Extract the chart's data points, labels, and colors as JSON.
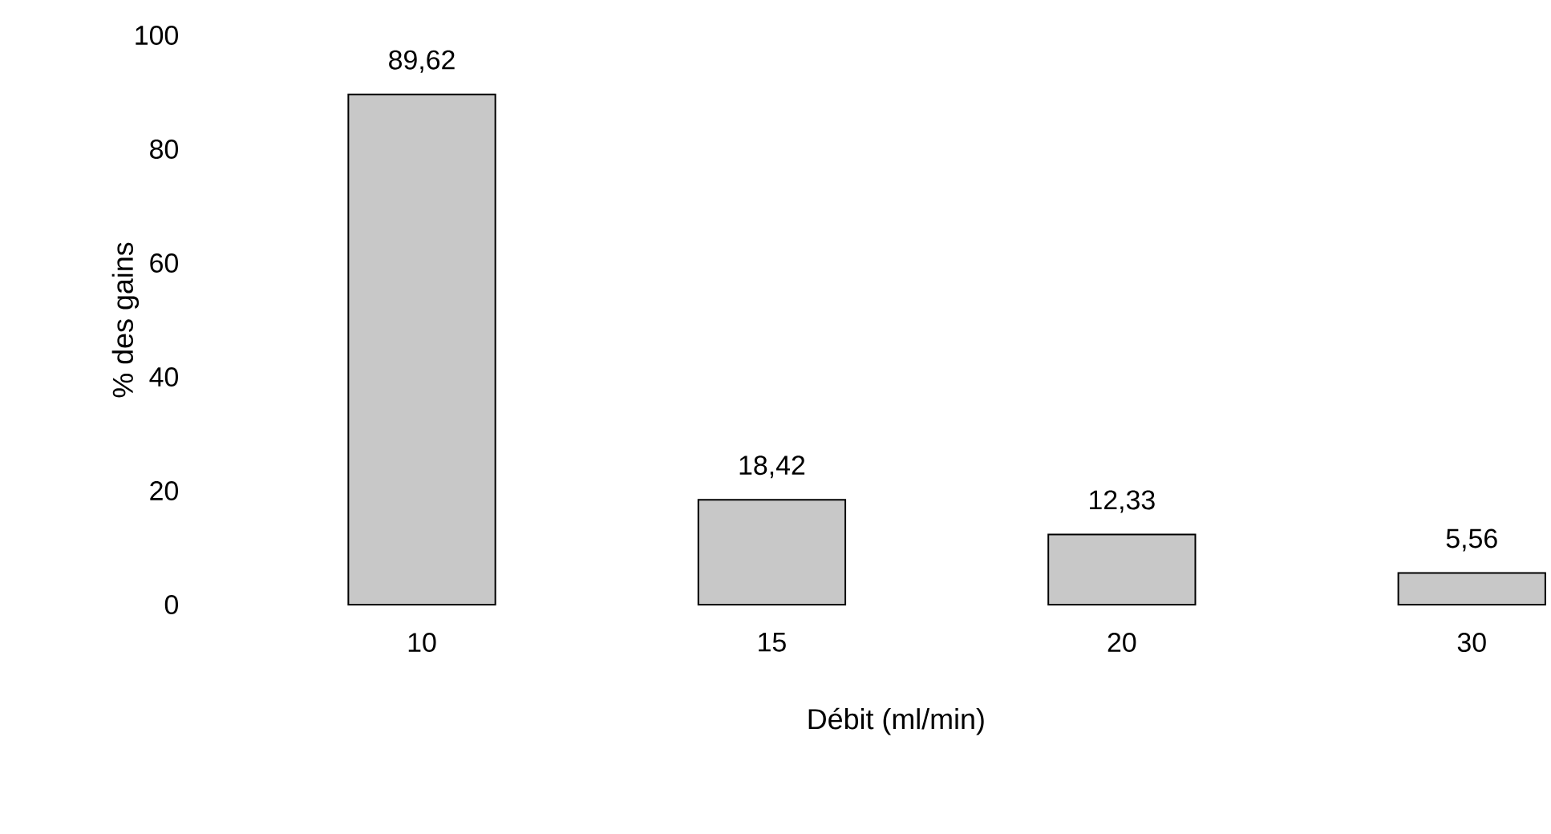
{
  "chart_data": {
    "type": "bar",
    "xlabel": "Débit (ml/min)",
    "ylabel": "% des gains",
    "categories": [
      "10",
      "15",
      "20",
      "30"
    ],
    "values": [
      89.62,
      18.42,
      12.33,
      5.56
    ],
    "value_labels": [
      "89,62",
      "18,42",
      "12,33",
      "5,56"
    ],
    "color": "#c8c8c8",
    "ylim": [
      0,
      100
    ],
    "yticks": [
      0,
      20,
      40,
      60,
      80,
      100
    ],
    "grid": false
  }
}
